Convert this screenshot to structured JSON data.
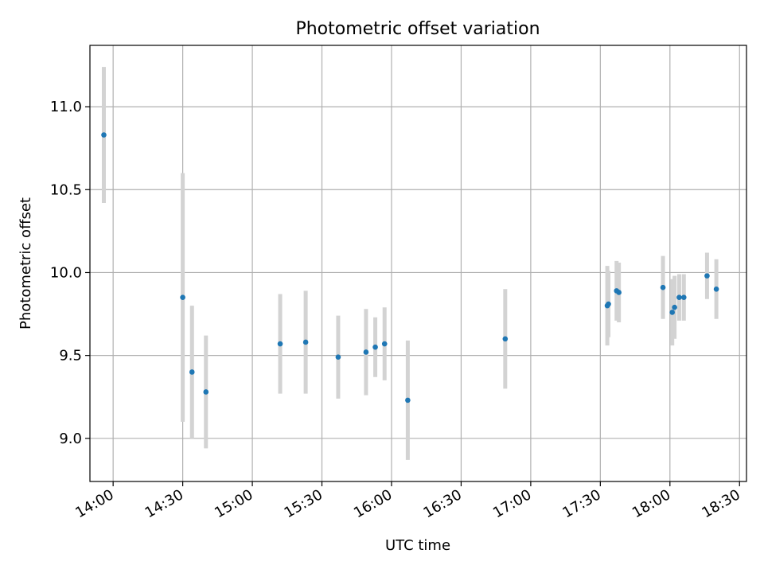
{
  "chart_data": {
    "type": "scatter",
    "title": "Photometric offset variation",
    "xlabel": "UTC time",
    "ylabel": "Photometric offset",
    "xlim": [
      "13:50",
      "18:33"
    ],
    "ylim": [
      8.74,
      11.37
    ],
    "x_ticks": [
      "14:00",
      "14:30",
      "15:00",
      "15:30",
      "16:00",
      "16:30",
      "17:00",
      "17:30",
      "18:00",
      "18:30"
    ],
    "y_ticks": [
      "9.0",
      "9.5",
      "10.0",
      "10.5",
      "11.0"
    ],
    "grid": true,
    "errorbar_color": "#d3d3d3",
    "marker_color": "#1f77b4",
    "points": [
      {
        "t": "13:56",
        "y": 10.83,
        "err": 0.41
      },
      {
        "t": "14:30",
        "y": 9.85,
        "err": 0.75
      },
      {
        "t": "14:34",
        "y": 9.4,
        "err": 0.4
      },
      {
        "t": "14:40",
        "y": 9.28,
        "err": 0.34
      },
      {
        "t": "15:12",
        "y": 9.57,
        "err": 0.3
      },
      {
        "t": "15:23",
        "y": 9.58,
        "err": 0.31
      },
      {
        "t": "15:37",
        "y": 9.49,
        "err": 0.25
      },
      {
        "t": "15:49",
        "y": 9.52,
        "err": 0.26
      },
      {
        "t": "15:53",
        "y": 9.55,
        "err": 0.18
      },
      {
        "t": "15:57",
        "y": 9.57,
        "err": 0.22
      },
      {
        "t": "16:07",
        "y": 9.23,
        "err": 0.36
      },
      {
        "t": "16:49",
        "y": 9.6,
        "err": 0.3
      },
      {
        "t": "17:33",
        "y": 9.8,
        "err": 0.24
      },
      {
        "t": "17:33:30",
        "y": 9.81,
        "err": 0.2
      },
      {
        "t": "17:37",
        "y": 9.89,
        "err": 0.18
      },
      {
        "t": "17:38",
        "y": 9.88,
        "err": 0.18
      },
      {
        "t": "17:57",
        "y": 9.91,
        "err": 0.19
      },
      {
        "t": "18:01",
        "y": 9.76,
        "err": 0.2
      },
      {
        "t": "18:02",
        "y": 9.79,
        "err": 0.19
      },
      {
        "t": "18:04",
        "y": 9.85,
        "err": 0.14
      },
      {
        "t": "18:06",
        "y": 9.85,
        "err": 0.14
      },
      {
        "t": "18:16",
        "y": 9.98,
        "err": 0.14
      },
      {
        "t": "18:20",
        "y": 9.9,
        "err": 0.18
      }
    ]
  }
}
